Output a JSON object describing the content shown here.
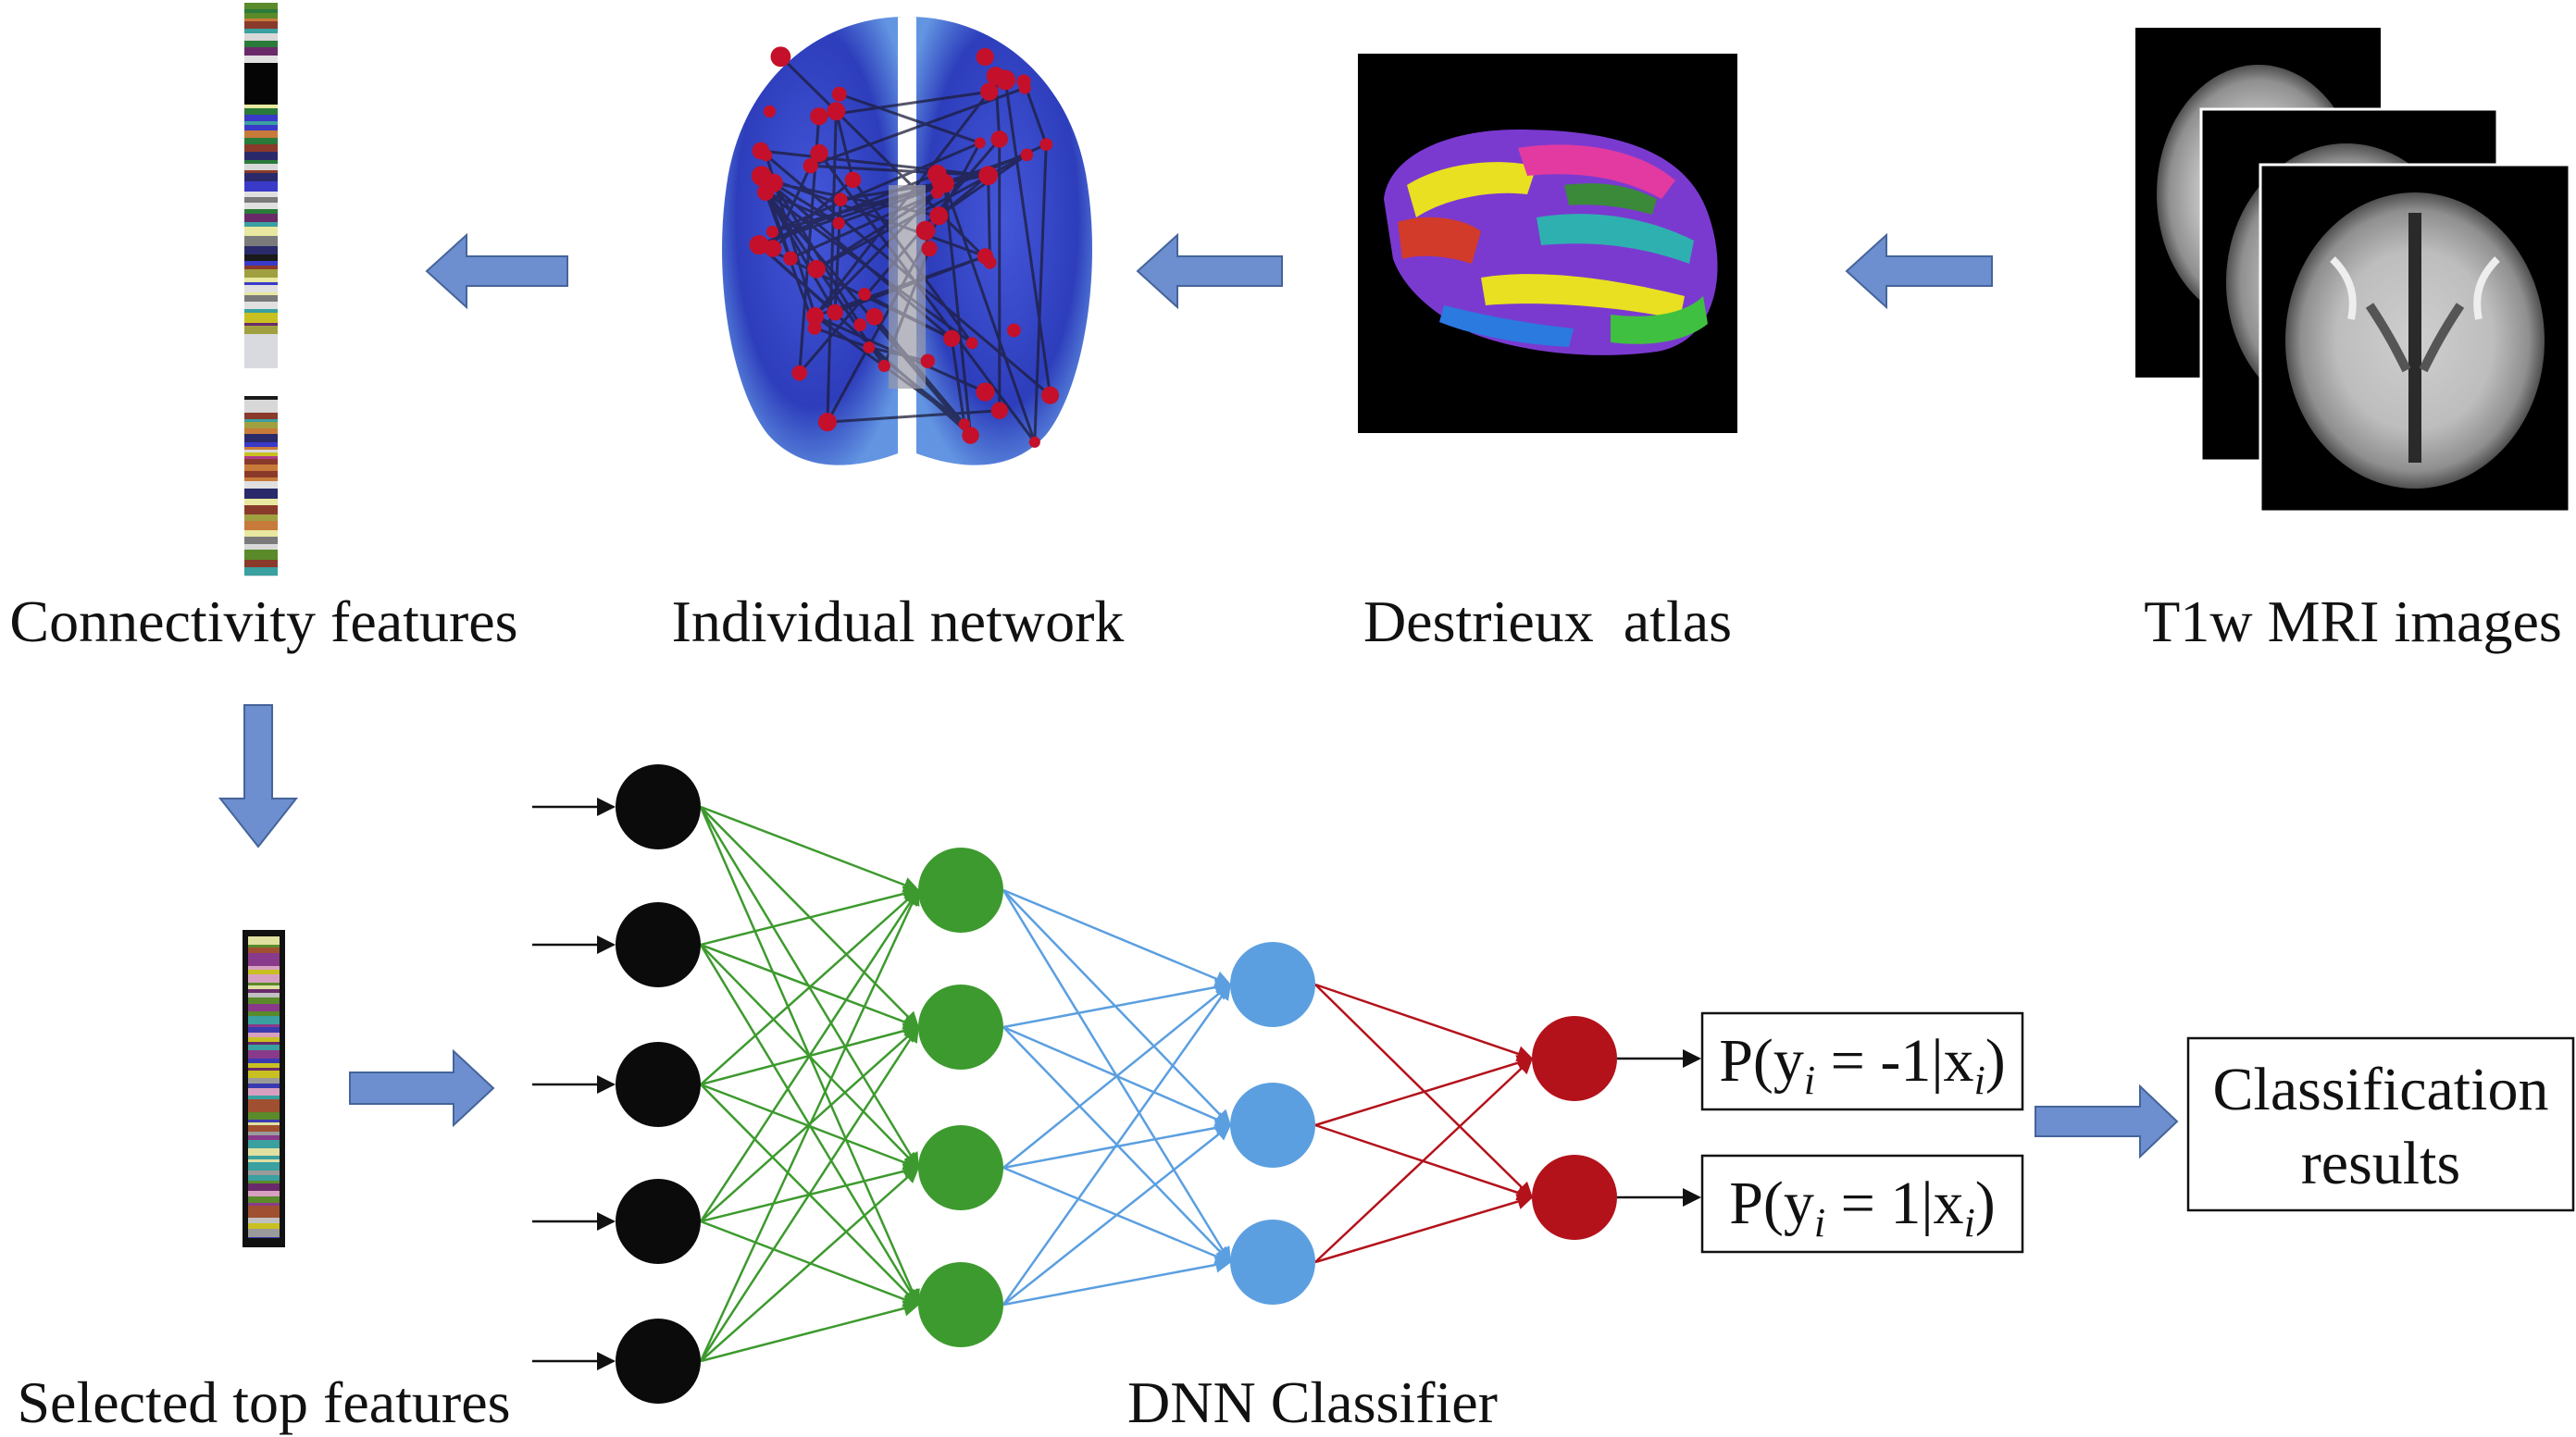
{
  "captions": {
    "connectivity": "Connectivity features",
    "network": "Individual network",
    "atlas": "Destrieux  atlas",
    "mri": "T1w MRI images",
    "selected": "Selected top features",
    "dnn": "DNN Classifier"
  },
  "outputs": {
    "neg": {
      "pre": "P(y",
      "sub": "i",
      "mid": " = -1|x",
      "sub2": "i",
      "post": ")"
    },
    "pos": {
      "pre": "P(y",
      "sub": "i",
      "mid": " = 1|x",
      "sub2": "i",
      "post": ")"
    }
  },
  "result": {
    "line1": "Classification",
    "line2": "results"
  },
  "network": {
    "layers": [
      5,
      4,
      3,
      2
    ],
    "colors": {
      "input": "#0b0b0b",
      "hidden1": "#3d9a2e",
      "hidden2": "#5b9fe0",
      "output": "#b3121b",
      "edge1": "#3d9a2e",
      "edge2": "#5b9fe0",
      "edge3": "#b3121b",
      "arrow": "#6d8fcf"
    }
  },
  "icons": {
    "feature_bar": "feature-vector-strip",
    "brain_network": "brain-network-image",
    "atlas": "cortical-atlas-image",
    "mri": "mri-slice-stack",
    "selected_bar": "selected-feature-strip"
  }
}
